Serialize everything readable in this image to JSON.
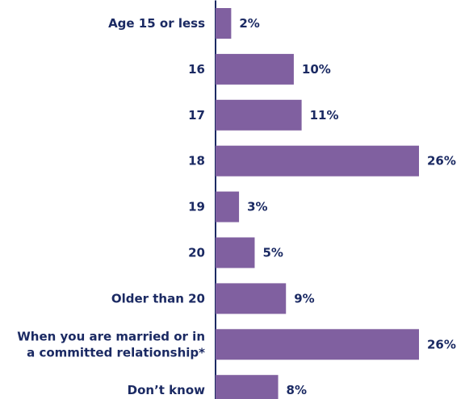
{
  "chart_data": {
    "type": "bar",
    "orientation": "horizontal",
    "categories": [
      [
        "Age 15 or less"
      ],
      [
        "16"
      ],
      [
        "17"
      ],
      [
        "18"
      ],
      [
        "19"
      ],
      [
        "20"
      ],
      [
        "Older than 20"
      ],
      [
        "When you are married or in",
        "a committed relationship*"
      ],
      [
        "Don’t know"
      ]
    ],
    "values": [
      2,
      10,
      11,
      26,
      3,
      5,
      9,
      26,
      8
    ],
    "value_labels": [
      "2%",
      "10%",
      "11%",
      "26%",
      "3%",
      "5%",
      "9%",
      "26%",
      "8%"
    ],
    "unit": "%",
    "xlim": [
      0,
      26
    ],
    "grid": false,
    "legend": "none",
    "colors": {
      "bar": "#8060a0",
      "text": "#1b2a63",
      "axis": "#1b2a63"
    }
  }
}
